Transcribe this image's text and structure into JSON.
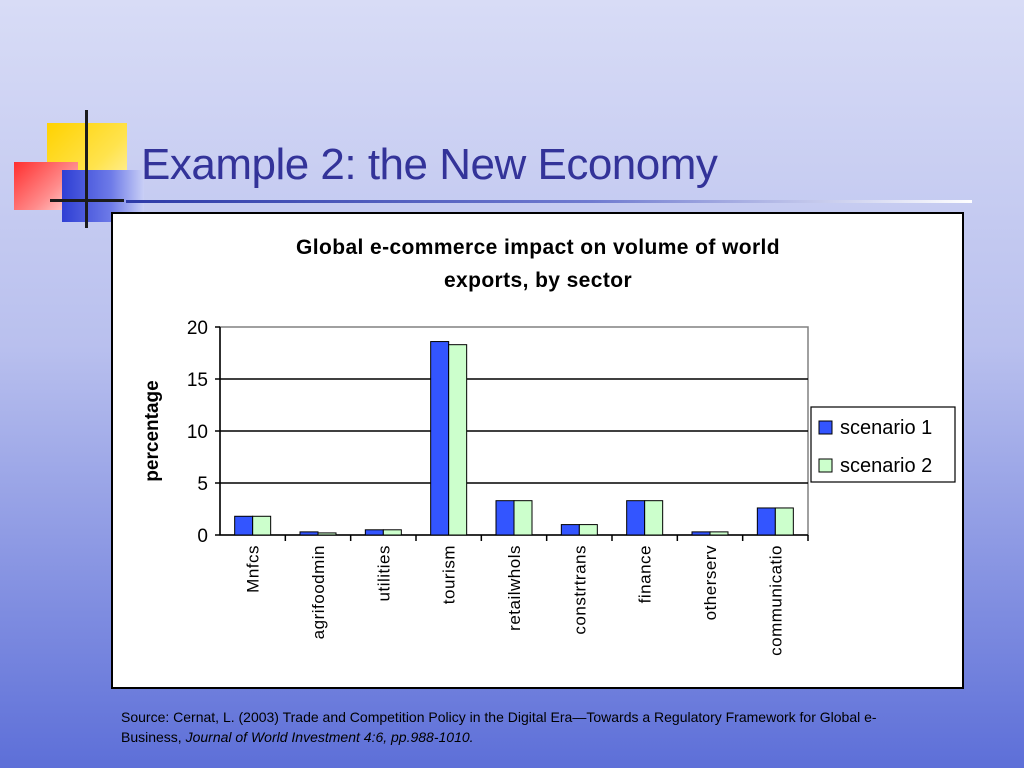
{
  "slide": {
    "title": "Example 2: the New Economy"
  },
  "source": {
    "text": "Source: Cernat, L. (2003) Trade and Competition Policy in the Digital Era—Towards a Regulatory Framework for Global e-Business, ",
    "journal": "Journal of World Investment 4:6, pp.988-1010."
  },
  "chart_data": {
    "type": "bar",
    "title": "Global e-commerce impact on volume of world exports, by sector",
    "title_lines": [
      "Global e-commerce impact on volume of world",
      "exports, by sector"
    ],
    "xlabel": "",
    "ylabel": "percentage",
    "ylim": [
      0,
      20
    ],
    "yticks": [
      0,
      5,
      10,
      15,
      20
    ],
    "grid": true,
    "legend_position": "right",
    "categories": [
      "Mnfcs",
      "agrifoodmin",
      "utilities",
      "tourism",
      "retailwhols",
      "constrtrans",
      "finance",
      "otherserv",
      "communicatio"
    ],
    "series": [
      {
        "name": "scenario 1",
        "color": "#3355ff",
        "values": [
          1.8,
          0.3,
          0.5,
          18.6,
          3.3,
          1.0,
          3.3,
          0.3,
          2.6
        ]
      },
      {
        "name": "scenario 2",
        "color": "#ccffcc",
        "values": [
          1.8,
          0.2,
          0.5,
          18.3,
          3.3,
          1.0,
          3.3,
          0.3,
          2.6
        ]
      }
    ]
  },
  "colors": {
    "title": "#333399",
    "series1": "#3355ff",
    "series2": "#ccffcc"
  }
}
